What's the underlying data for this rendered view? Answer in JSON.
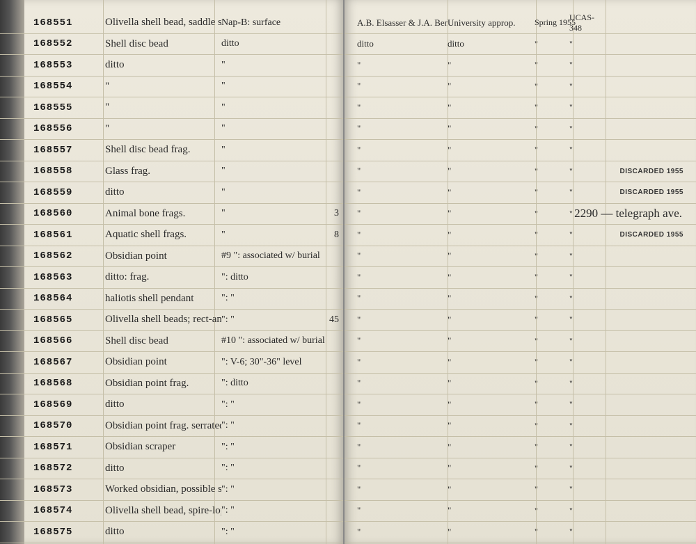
{
  "leftPage": {
    "rows": [
      {
        "num": "168551",
        "desc": "Olivella shell bead, saddle shaped",
        "loc": "Nap-B: surface",
        "qty": ""
      },
      {
        "num": "168552",
        "desc": "Shell disc bead",
        "loc": "ditto",
        "qty": ""
      },
      {
        "num": "168553",
        "desc": "ditto",
        "loc": "\"",
        "qty": ""
      },
      {
        "num": "168554",
        "desc": "\"",
        "loc": "\"",
        "qty": ""
      },
      {
        "num": "168555",
        "desc": "\"",
        "loc": "\"",
        "qty": ""
      },
      {
        "num": "168556",
        "desc": "\"",
        "loc": "\"",
        "qty": ""
      },
      {
        "num": "168557",
        "desc": "Shell disc bead frag.",
        "loc": "\"",
        "qty": ""
      },
      {
        "num": "168558",
        "desc": "Glass frag.",
        "loc": "\"",
        "qty": ""
      },
      {
        "num": "168559",
        "desc": "ditto",
        "loc": "\"",
        "qty": ""
      },
      {
        "num": "168560",
        "desc": "Animal bone frags.",
        "loc": "\"",
        "qty": "3"
      },
      {
        "num": "168561",
        "desc": "Aquatic shell frags.",
        "loc": "\"",
        "qty": "8"
      },
      {
        "num": "168562",
        "desc": "Obsidian point",
        "loc": "#9 \": associated w/ burial",
        "qty": ""
      },
      {
        "num": "168563",
        "desc": "ditto: frag.",
        "loc": "\": ditto",
        "qty": ""
      },
      {
        "num": "168564",
        "desc": "haliotis shell pendant",
        "loc": "\":  \"",
        "qty": ""
      },
      {
        "num": "168565",
        "desc": "Olivella shell beads; rect-angular",
        "loc": "\":  \"",
        "qty": "45"
      },
      {
        "num": "168566",
        "desc": "Shell disc bead",
        "loc": "#10 \": associated w/ burial",
        "qty": ""
      },
      {
        "num": "168567",
        "desc": "Obsidian point",
        "loc": "\": V-6; 30\"-36\" level",
        "qty": ""
      },
      {
        "num": "168568",
        "desc": "Obsidian point frag.",
        "loc": "\": ditto",
        "qty": ""
      },
      {
        "num": "168569",
        "desc": "ditto",
        "loc": "\":  \"",
        "qty": ""
      },
      {
        "num": "168570",
        "desc": "Obsidian point frag. serrated",
        "loc": "\":  \"",
        "qty": ""
      },
      {
        "num": "168571",
        "desc": "Obsidian scraper",
        "loc": "\":  \"",
        "qty": ""
      },
      {
        "num": "168572",
        "desc": "ditto",
        "loc": "\":  \"",
        "qty": ""
      },
      {
        "num": "168573",
        "desc": "Worked obsidian, possible scraper",
        "loc": "\":  \"",
        "qty": ""
      },
      {
        "num": "168574",
        "desc": "Olivella shell bead, spire-lopped",
        "loc": "\":  \"",
        "qty": ""
      },
      {
        "num": "168575",
        "desc": "ditto",
        "loc": "\":  \"",
        "qty": ""
      }
    ]
  },
  "rightPage": {
    "rows": [
      {
        "c1": "A.B. Elsasser & J.A. Bennyhoff et al",
        "c2": "University approp.",
        "c3": "Spring 1955",
        "c4": "UCAS-348",
        "stamp": "",
        "note": ""
      },
      {
        "c1": "ditto",
        "c2": "ditto",
        "c3": "\"",
        "c4": "\"",
        "stamp": "",
        "note": ""
      },
      {
        "c1": "\"",
        "c2": "\"",
        "c3": "\"",
        "c4": "\"",
        "stamp": "",
        "note": ""
      },
      {
        "c1": "\"",
        "c2": "\"",
        "c3": "\"",
        "c4": "\"",
        "stamp": "",
        "note": ""
      },
      {
        "c1": "\"",
        "c2": "\"",
        "c3": "\"",
        "c4": "\"",
        "stamp": "",
        "note": ""
      },
      {
        "c1": "\"",
        "c2": "\"",
        "c3": "\"",
        "c4": "\"",
        "stamp": "",
        "note": ""
      },
      {
        "c1": "\"",
        "c2": "\"",
        "c3": "\"",
        "c4": "\"",
        "stamp": "",
        "note": ""
      },
      {
        "c1": "\"",
        "c2": "\"",
        "c3": "\"",
        "c4": "\"",
        "stamp": "DISCARDED 1955",
        "note": ""
      },
      {
        "c1": "\"",
        "c2": "\"",
        "c3": "\"",
        "c4": "\"",
        "stamp": "DISCARDED 1955",
        "note": ""
      },
      {
        "c1": "\"",
        "c2": "\"",
        "c3": "\"",
        "c4": "\"",
        "stamp": "",
        "note": "2290 — telegraph ave."
      },
      {
        "c1": "\"",
        "c2": "\"",
        "c3": "\"",
        "c4": "\"",
        "stamp": "DISCARDED 1955",
        "note": ""
      },
      {
        "c1": "\"",
        "c2": "\"",
        "c3": "\"",
        "c4": "\"",
        "stamp": "",
        "note": ""
      },
      {
        "c1": "\"",
        "c2": "\"",
        "c3": "\"",
        "c4": "\"",
        "stamp": "",
        "note": ""
      },
      {
        "c1": "\"",
        "c2": "\"",
        "c3": "\"",
        "c4": "\"",
        "stamp": "",
        "note": ""
      },
      {
        "c1": "\"",
        "c2": "\"",
        "c3": "\"",
        "c4": "\"",
        "stamp": "",
        "note": ""
      },
      {
        "c1": "\"",
        "c2": "\"",
        "c3": "\"",
        "c4": "\"",
        "stamp": "",
        "note": ""
      },
      {
        "c1": "\"",
        "c2": "\"",
        "c3": "\"",
        "c4": "\"",
        "stamp": "",
        "note": ""
      },
      {
        "c1": "\"",
        "c2": "\"",
        "c3": "\"",
        "c4": "\"",
        "stamp": "",
        "note": ""
      },
      {
        "c1": "\"",
        "c2": "\"",
        "c3": "\"",
        "c4": "\"",
        "stamp": "",
        "note": ""
      },
      {
        "c1": "\"",
        "c2": "\"",
        "c3": "\"",
        "c4": "\"",
        "stamp": "",
        "note": ""
      },
      {
        "c1": "\"",
        "c2": "\"",
        "c3": "\"",
        "c4": "\"",
        "stamp": "",
        "note": ""
      },
      {
        "c1": "\"",
        "c2": "\"",
        "c3": "\"",
        "c4": "\"",
        "stamp": "",
        "note": ""
      },
      {
        "c1": "\"",
        "c2": "\"",
        "c3": "\"",
        "c4": "\"",
        "stamp": "",
        "note": ""
      },
      {
        "c1": "\"",
        "c2": "\"",
        "c3": "\"",
        "c4": "\"",
        "stamp": "",
        "note": ""
      },
      {
        "c1": "\"",
        "c2": "\"",
        "c3": "\"",
        "c4": "\"",
        "stamp": "",
        "note": ""
      }
    ]
  },
  "colors": {
    "paper": "#e8e4d8",
    "ink": "#2a2a2a",
    "rule": "#c5bfa8",
    "binding": "#3a3a3a"
  }
}
